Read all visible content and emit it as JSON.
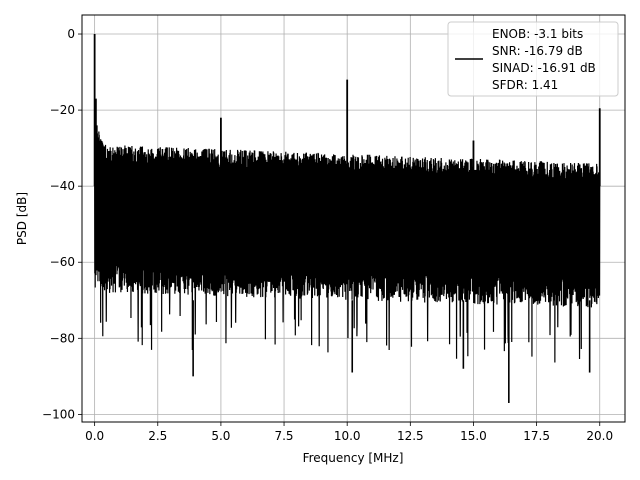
{
  "chart_data": {
    "type": "line",
    "title": "",
    "xlabel": "Frequency [MHz]",
    "ylabel": "PSD [dB]",
    "xlim": [
      -0.5,
      21.0
    ],
    "ylim": [
      -102,
      5
    ],
    "x_ticks": [
      0.0,
      2.5,
      5.0,
      7.5,
      10.0,
      12.5,
      15.0,
      17.5,
      20.0
    ],
    "x_tick_labels": [
      "0.0",
      "2.5",
      "5.0",
      "7.5",
      "10.0",
      "12.5",
      "15.0",
      "17.5",
      "20.0"
    ],
    "y_ticks": [
      0,
      -20,
      -40,
      -60,
      -80,
      -100
    ],
    "y_tick_labels": [
      "0",
      "−20",
      "−40",
      "−60",
      "−80",
      "−100"
    ],
    "grid": true,
    "legend_position": "top-right",
    "series": [
      {
        "color": "#000000",
        "noise_floor": {
          "top_db": [
            -29,
            -34
          ],
          "bottom_db": [
            -68,
            -72
          ],
          "x_range": [
            0.0,
            20.0
          ]
        },
        "spikes": [
          {
            "x": 0.0,
            "y": 0.0
          },
          {
            "x": 0.05,
            "y": -17
          },
          {
            "x": 5.0,
            "y": -22
          },
          {
            "x": 10.0,
            "y": -12
          },
          {
            "x": 15.0,
            "y": -28
          },
          {
            "x": 20.0,
            "y": -19.5
          }
        ],
        "deep_dips": [
          {
            "x": 3.9,
            "y": -90
          },
          {
            "x": 10.2,
            "y": -89
          },
          {
            "x": 16.4,
            "y": -97
          },
          {
            "x": 14.6,
            "y": -88
          },
          {
            "x": 19.6,
            "y": -89
          }
        ]
      }
    ],
    "legend_lines": [
      "ENOB: -3.1 bits",
      "SNR: -16.79 dB",
      "SINAD: -16.91 dB",
      "SFDR: 1.41"
    ]
  }
}
